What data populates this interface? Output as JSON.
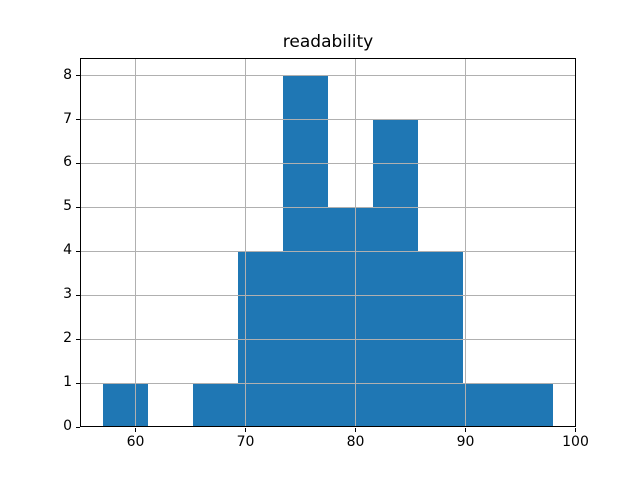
{
  "chart_data": {
    "type": "bar",
    "variant": "histogram",
    "title": "readability",
    "xlabel": "",
    "ylabel": "",
    "bin_edges": [
      57.0,
      61.1,
      65.2,
      69.3,
      73.4,
      77.5,
      81.6,
      85.7,
      89.8,
      93.9,
      98.0
    ],
    "counts": [
      1,
      0,
      1,
      4,
      8,
      5,
      7,
      4,
      1,
      1
    ],
    "xlim": [
      54.95,
      100.05
    ],
    "ylim": [
      0,
      8.4
    ],
    "xticks": [
      60,
      70,
      80,
      90,
      100
    ],
    "yticks": [
      0,
      1,
      2,
      3,
      4,
      5,
      6,
      7,
      8
    ],
    "grid": true,
    "bar_color": "#1f77b4",
    "grid_color": "#b0b0b0",
    "axis_color": "#000000",
    "background_color": "#ffffff"
  }
}
